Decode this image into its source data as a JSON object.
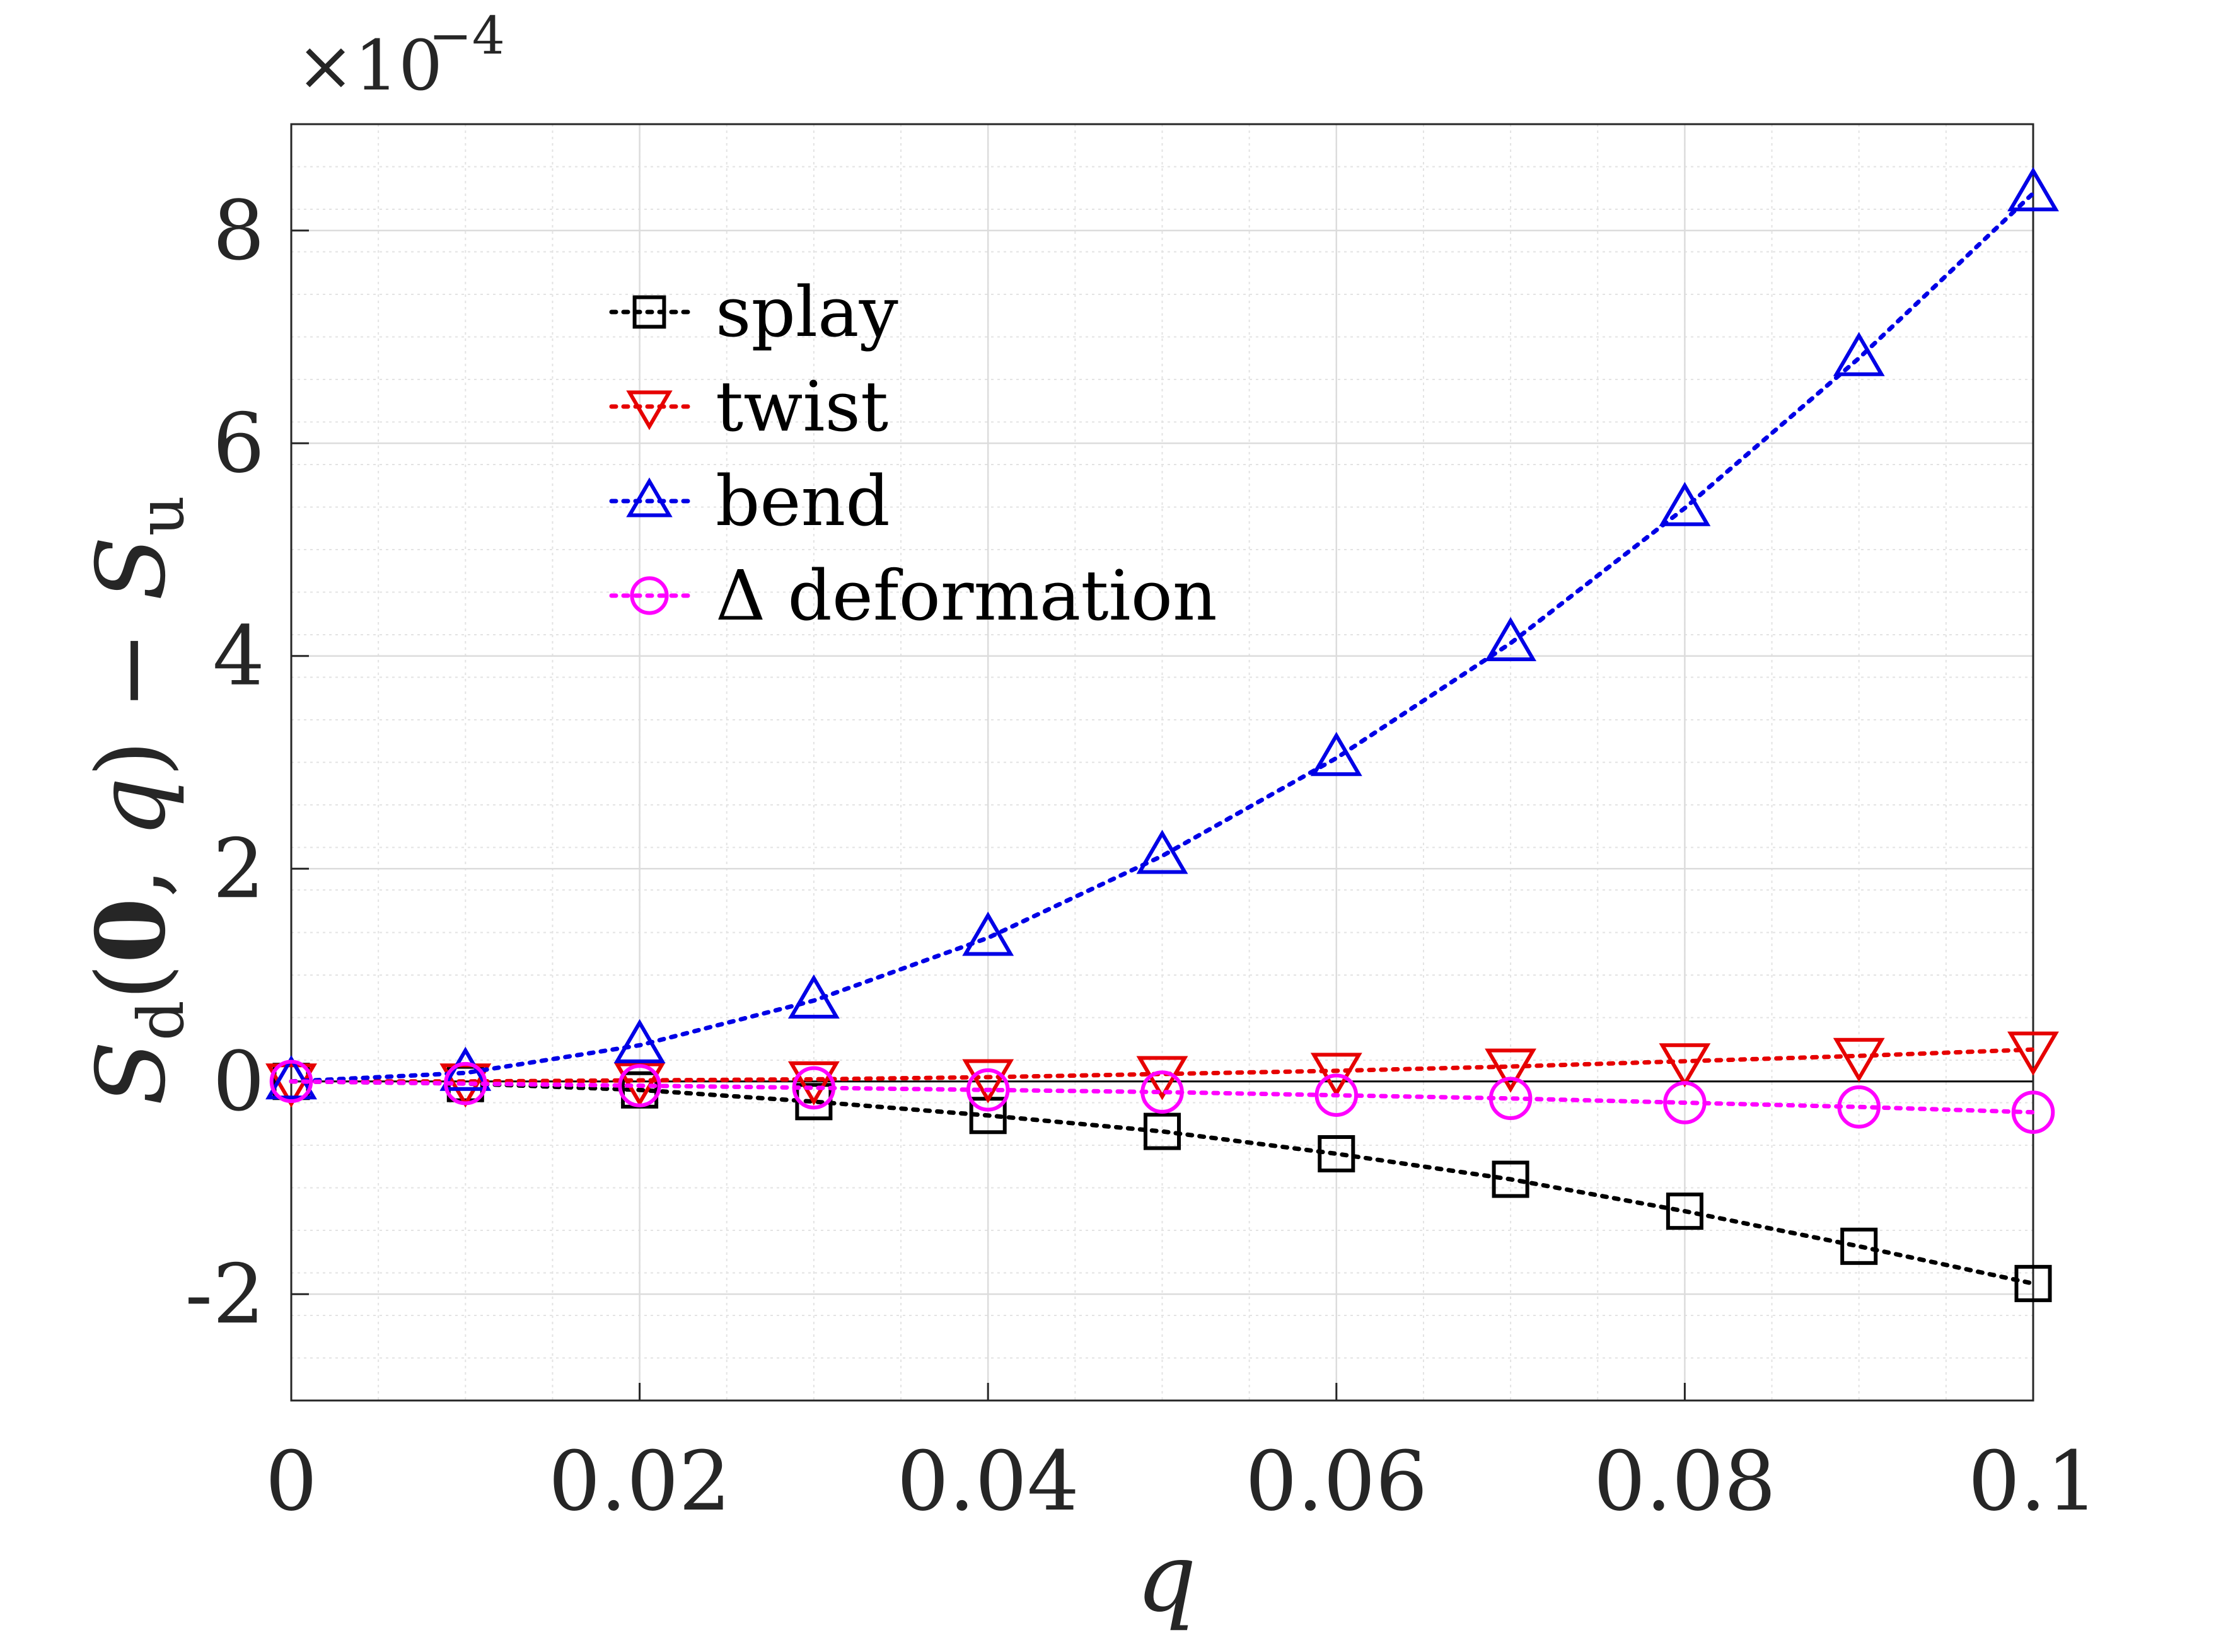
{
  "chart_data": {
    "type": "line",
    "xlabel": "q",
    "ylabel": "S_d(0, q) − S_u",
    "ylabel_parts": {
      "main": "S",
      "sub_d": "d",
      "arg_open": "(",
      "bold_zero": "0",
      "arg_sep": ", ",
      "arg_var": "q",
      "arg_close": ")",
      "minus": " − ",
      "main2": "S",
      "sub_u": "u"
    },
    "y_multiplier_text": "×10",
    "y_multiplier_exp": "−4",
    "xlim": [
      0,
      0.1
    ],
    "ylim": [
      -3,
      9
    ],
    "x_ticks": [
      0,
      0.02,
      0.04,
      0.06,
      0.08,
      0.1
    ],
    "x_tick_labels": [
      "0",
      "0.02",
      "0.04",
      "0.06",
      "0.08",
      "0.1"
    ],
    "y_ticks": [
      -2,
      0,
      2,
      4,
      6,
      8
    ],
    "y_tick_labels": [
      "-2",
      "0",
      "2",
      "4",
      "6",
      "8"
    ],
    "grid": true,
    "minor_grid": true,
    "legend_position": "upper-left",
    "x": [
      0,
      0.01,
      0.02,
      0.03,
      0.04,
      0.05,
      0.06,
      0.07,
      0.08,
      0.09,
      0.1
    ],
    "series": [
      {
        "name": "splay",
        "color": "#000000",
        "marker": "square",
        "values": [
          0,
          -0.02,
          -0.08,
          -0.19,
          -0.32,
          -0.47,
          -0.68,
          -0.92,
          -1.22,
          -1.55,
          -1.9
        ]
      },
      {
        "name": "twist",
        "color": "#e60000",
        "marker": "triangle-down",
        "values": [
          0,
          0.0,
          0.01,
          0.02,
          0.04,
          0.07,
          0.1,
          0.14,
          0.19,
          0.24,
          0.3
        ]
      },
      {
        "name": "bend",
        "color": "#0000e6",
        "marker": "triangle-up",
        "values": [
          0,
          0.08,
          0.34,
          0.76,
          1.35,
          2.12,
          3.04,
          4.12,
          5.39,
          6.8,
          8.35
        ]
      },
      {
        "name": "Δ deformation",
        "color": "#ff00ff",
        "marker": "circle",
        "values": [
          0,
          -0.02,
          -0.04,
          -0.06,
          -0.08,
          -0.1,
          -0.13,
          -0.16,
          -0.2,
          -0.24,
          -0.29
        ]
      }
    ]
  }
}
